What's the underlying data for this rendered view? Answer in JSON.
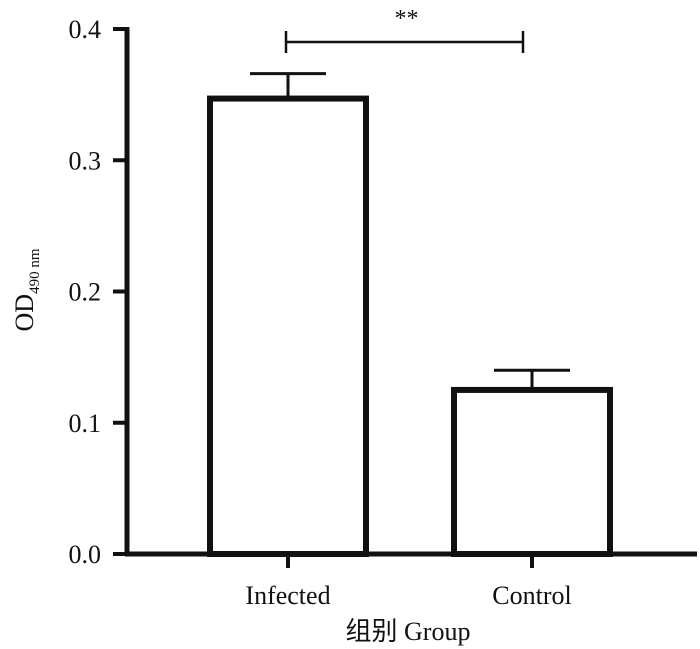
{
  "chart_data": {
    "type": "bar",
    "title": "",
    "xlabel": "组别 Group",
    "ylabel": "OD",
    "ylabel_subscript": "490 nm",
    "categories": [
      "Infected",
      "Control"
    ],
    "values": [
      0.347,
      0.125
    ],
    "error_upper": [
      0.366,
      0.14
    ],
    "ylim": [
      0.0,
      0.4
    ],
    "yticks": [
      0.0,
      0.1,
      0.2,
      0.3,
      0.4
    ],
    "ytick_labels": [
      "0.0",
      "0.1",
      "0.2",
      "0.3",
      "0.4"
    ],
    "grid": false,
    "legend": "none",
    "annotations": [
      {
        "text": "**",
        "between": [
          "Infected",
          "Control"
        ]
      }
    ]
  },
  "colors": {
    "bar_fill": "#ffffff",
    "stroke": "#111111",
    "background": "#ffffff"
  }
}
